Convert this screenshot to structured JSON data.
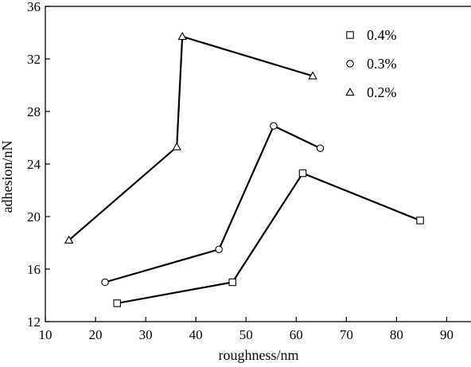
{
  "chart_data": {
    "type": "line",
    "xlabel": "roughness/nm",
    "ylabel": "adhesion/nN",
    "xlim": [
      10,
      95
    ],
    "ylim": [
      12,
      36
    ],
    "xticks": [
      10,
      20,
      30,
      40,
      50,
      60,
      70,
      80,
      90
    ],
    "yticks": [
      12,
      16,
      20,
      24,
      28,
      32,
      36
    ],
    "grid": false,
    "legend_position": "top-right",
    "series": [
      {
        "name": "0.4%",
        "marker": "square",
        "points": [
          [
            24.3,
            13.4
          ],
          [
            47.3,
            15.0
          ],
          [
            61.3,
            23.3
          ],
          [
            84.7,
            19.7
          ]
        ]
      },
      {
        "name": "0.3%",
        "marker": "circle",
        "points": [
          [
            21.9,
            15.0
          ],
          [
            44.6,
            17.5
          ],
          [
            55.5,
            26.9
          ],
          [
            64.8,
            25.2
          ]
        ]
      },
      {
        "name": "0.2%",
        "marker": "triangle",
        "points": [
          [
            14.7,
            18.2
          ],
          [
            36.2,
            25.3
          ],
          [
            37.3,
            33.7
          ],
          [
            63.3,
            30.7
          ]
        ]
      }
    ]
  }
}
